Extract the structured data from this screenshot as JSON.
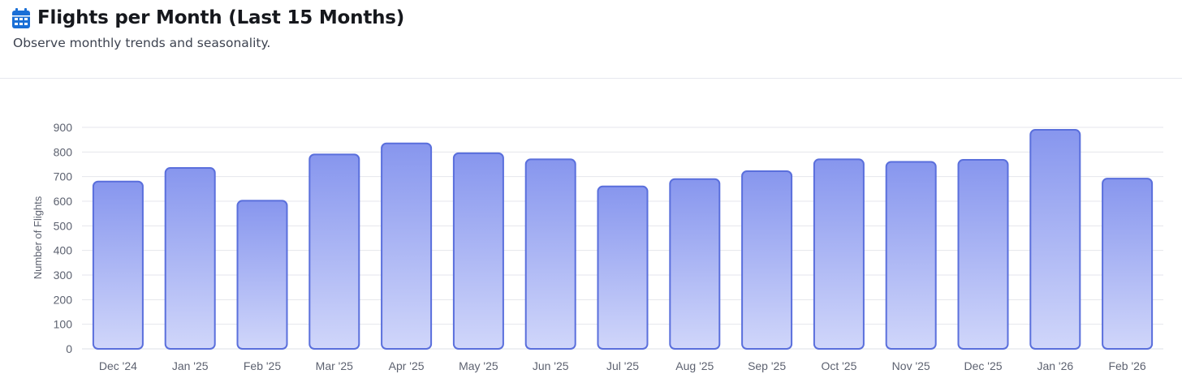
{
  "header": {
    "icon": "calendar-icon",
    "title": "Flights per Month (Last 15 Months)",
    "subtitle": "Observe monthly trends and seasonality."
  },
  "colors": {
    "accent": "#1a6fd6",
    "bar_fill_top": "#8796ee",
    "bar_fill_bottom": "#d0d6fa",
    "bar_stroke": "#5a6fdc",
    "grid": "#e4e6ec"
  },
  "chart_data": {
    "type": "bar",
    "categories": [
      "Dec '24",
      "Jan '25",
      "Feb '25",
      "Mar '25",
      "Apr '25",
      "May '25",
      "Jun '25",
      "Jul '25",
      "Aug '25",
      "Sep '25",
      "Oct '25",
      "Nov '25",
      "Dec '25",
      "Jan '26",
      "Feb '26"
    ],
    "values": [
      680,
      735,
      602,
      790,
      835,
      795,
      770,
      660,
      690,
      722,
      770,
      760,
      768,
      890,
      692
    ],
    "title": "Flights per Month (Last 15 Months)",
    "xlabel": "",
    "ylabel": "Number of Flights",
    "ylim": [
      0,
      900
    ],
    "yticks": [
      0,
      100,
      200,
      300,
      400,
      500,
      600,
      700,
      800,
      900
    ],
    "grid": true,
    "legend": "none"
  }
}
